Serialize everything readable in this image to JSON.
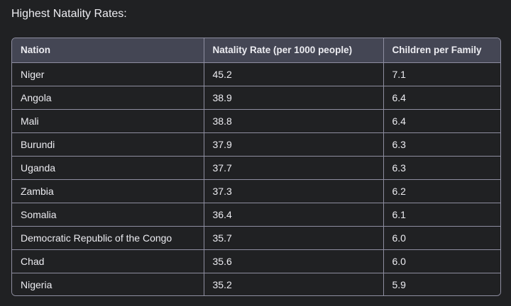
{
  "heading": "Highest Natality Rates:",
  "table": {
    "headers": [
      "Nation",
      "Natality Rate (per 1000 people)",
      "Children per Family"
    ],
    "rows": [
      [
        "Niger",
        "45.2",
        "7.1"
      ],
      [
        "Angola",
        "38.9",
        "6.4"
      ],
      [
        "Mali",
        "38.8",
        "6.4"
      ],
      [
        "Burundi",
        "37.9",
        "6.3"
      ],
      [
        "Uganda",
        "37.7",
        "6.3"
      ],
      [
        "Zambia",
        "37.3",
        "6.2"
      ],
      [
        "Somalia",
        "36.4",
        "6.1"
      ],
      [
        "Democratic Republic of the Congo",
        "35.7",
        "6.0"
      ],
      [
        "Chad",
        "35.6",
        "6.0"
      ],
      [
        "Nigeria",
        "35.2",
        "5.9"
      ]
    ]
  },
  "colors": {
    "background": "#202123",
    "header_background": "#444654",
    "border": "#8e8ea0",
    "text": "#ececf1"
  }
}
